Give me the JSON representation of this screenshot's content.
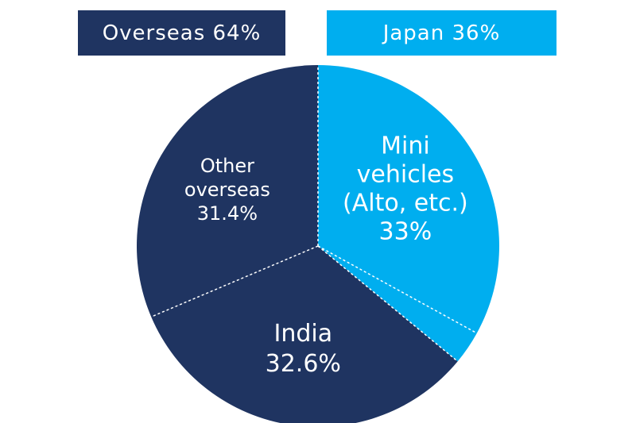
{
  "legend": {
    "overseas": {
      "label": "Overseas 64%",
      "color": "#1f3461"
    },
    "japan": {
      "label": "Japan 36%",
      "color": "#00aeef"
    }
  },
  "chart_data": {
    "type": "pie",
    "title": "",
    "groups": [
      {
        "name": "Overseas",
        "value": 64,
        "label": "Overseas 64%",
        "color": "#1f3461"
      },
      {
        "name": "Japan",
        "value": 36,
        "label": "Japan 36%",
        "color": "#00aeef"
      }
    ],
    "slices": [
      {
        "label_lines": [
          "Mini",
          "vehicles",
          "(Alto, etc.)",
          "33%"
        ],
        "value": 33,
        "group": "Japan",
        "color": "#00aeef"
      },
      {
        "label_lines": [],
        "value": 3,
        "group": "Japan",
        "color": "#00aeef"
      },
      {
        "label_lines": [
          "India",
          "32.6%"
        ],
        "value": 32.6,
        "group": "Overseas",
        "color": "#1f3461"
      },
      {
        "label_lines": [
          "Other",
          "overseas",
          "31.4%"
        ],
        "value": 31.4,
        "group": "Overseas",
        "color": "#1f3461"
      }
    ],
    "start": "12 o'clock",
    "direction": "clockwise",
    "separator_style": "dotted white"
  }
}
